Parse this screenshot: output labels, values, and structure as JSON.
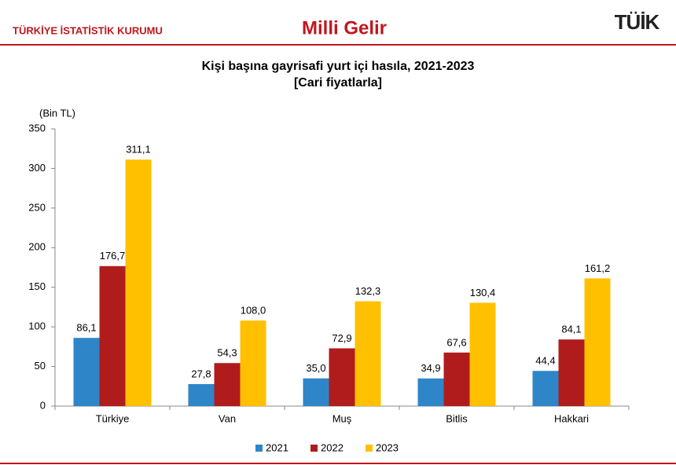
{
  "header": {
    "organization": "TÜRKİYE İSTATİSTİK KURUMU",
    "title": "Milli Gelir",
    "logo": "TÜİK"
  },
  "chart_data": {
    "type": "bar",
    "title": "Kişi başına gayrisafi yurt içi hasıla, 2021-2023",
    "subtitle": "[Cari fiyatlarla]",
    "y_label": "(Bin TL)",
    "categories": [
      "Türkiye",
      "Van",
      "Muş",
      "Bitlis",
      "Hakkari"
    ],
    "series": [
      {
        "name": "2021",
        "color": "#2e86c8",
        "values": [
          86.1,
          27.8,
          35.0,
          34.9,
          44.4
        ],
        "value_labels": [
          "86,1",
          "27,8",
          "35,0",
          "34,9",
          "44,4"
        ]
      },
      {
        "name": "2022",
        "color": "#b01c1c",
        "values": [
          176.7,
          54.3,
          72.9,
          67.6,
          84.1
        ],
        "value_labels": [
          "176,7",
          "54,3",
          "72,9",
          "67,6",
          "84,1"
        ]
      },
      {
        "name": "2023",
        "color": "#ffc000",
        "values": [
          311.1,
          108.0,
          132.3,
          130.4,
          161.2
        ],
        "value_labels": [
          "311,1",
          "108,0",
          "132,3",
          "130,4",
          "161,2"
        ]
      }
    ],
    "ylim": [
      0,
      350
    ],
    "yticks": [
      0,
      50,
      100,
      150,
      200,
      250,
      300,
      350
    ],
    "grid": false,
    "legend": "bottom"
  }
}
